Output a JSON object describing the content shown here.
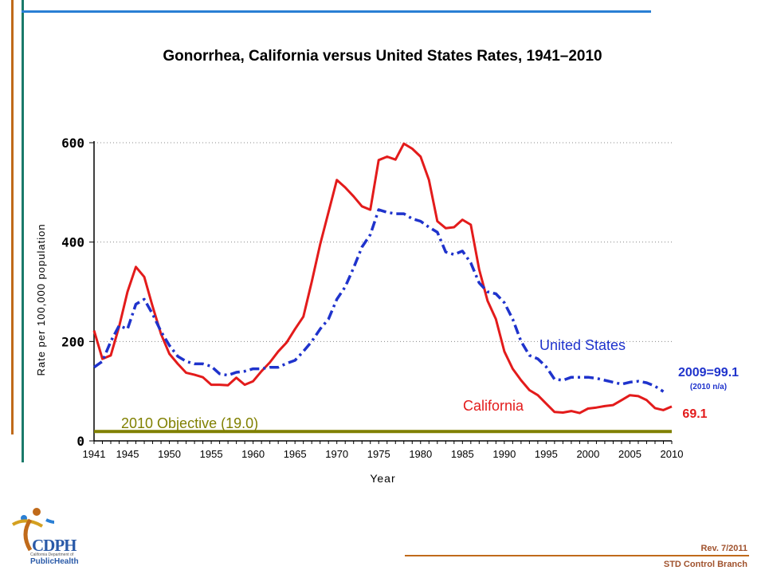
{
  "colors": {
    "california": "#e31b1b",
    "united_states": "#1f33cc",
    "objective": "#808000",
    "frame_brown": "#c06a1a",
    "frame_teal": "#1a7a6a",
    "frame_blue": "#2a7fd4",
    "footer": "#a0522d"
  },
  "footer": {
    "rev": "Rev. 7/2011",
    "branch": "STD Control Branch"
  },
  "logo": {
    "title": "CDPH",
    "sub1": "California Department of",
    "sub2": "PublicHealth"
  },
  "chart_data": {
    "type": "line",
    "title": "Gonorrhea, California versus United States Rates, 1941–2010",
    "xlabel": "Year",
    "ylabel": "Rate per 100,000 population",
    "xlim": [
      1941,
      2010
    ],
    "ylim": [
      0,
      600
    ],
    "yticks": [
      0,
      200,
      400,
      600
    ],
    "ytick_labels": [
      "0",
      "200",
      "400",
      "600"
    ],
    "xticks": [
      1941,
      1945,
      1950,
      1955,
      1960,
      1965,
      1970,
      1975,
      1980,
      1985,
      1990,
      1995,
      2000,
      2005,
      2010
    ],
    "xtick_labels": [
      "1941",
      "1945",
      "1950",
      "1955",
      "1960",
      "1965",
      "1970",
      "1975",
      "1980",
      "1985",
      "1990",
      "1995",
      "2000",
      "2005",
      "2010"
    ],
    "grid": "horizontal dotted",
    "series": [
      {
        "name": "California",
        "label": "California",
        "style": "solid",
        "x": [
          1941,
          1942,
          1943,
          1944,
          1945,
          1946,
          1947,
          1948,
          1949,
          1950,
          1951,
          1952,
          1953,
          1954,
          1955,
          1956,
          1957,
          1958,
          1959,
          1960,
          1961,
          1962,
          1963,
          1964,
          1965,
          1966,
          1967,
          1968,
          1969,
          1970,
          1971,
          1972,
          1973,
          1974,
          1975,
          1976,
          1977,
          1978,
          1979,
          1980,
          1981,
          1982,
          1983,
          1984,
          1985,
          1986,
          1987,
          1988,
          1989,
          1990,
          1991,
          1992,
          1993,
          1994,
          1995,
          1996,
          1997,
          1998,
          1999,
          2000,
          2001,
          2002,
          2003,
          2004,
          2005,
          2006,
          2007,
          2008,
          2009,
          2010
        ],
        "values": [
          222,
          165,
          172,
          230,
          300,
          350,
          330,
          270,
          215,
          175,
          155,
          137,
          133,
          128,
          113,
          113,
          112,
          127,
          113,
          120,
          140,
          158,
          180,
          198,
          225,
          250,
          320,
          395,
          460,
          525,
          510,
          492,
          472,
          465,
          565,
          572,
          566,
          598,
          588,
          572,
          525,
          442,
          428,
          430,
          445,
          435,
          345,
          282,
          245,
          180,
          145,
          122,
          102,
          92,
          75,
          58,
          57,
          60,
          56,
          65,
          67,
          70,
          72,
          82,
          92,
          90,
          82,
          66,
          62,
          69.1
        ]
      },
      {
        "name": "United States",
        "label": "United States",
        "style": "dashdot",
        "x": [
          1941,
          1942,
          1943,
          1944,
          1945,
          1946,
          1947,
          1948,
          1949,
          1950,
          1951,
          1952,
          1953,
          1954,
          1955,
          1956,
          1957,
          1958,
          1959,
          1960,
          1961,
          1962,
          1963,
          1964,
          1965,
          1966,
          1967,
          1968,
          1969,
          1970,
          1971,
          1972,
          1973,
          1974,
          1975,
          1976,
          1977,
          1978,
          1979,
          1980,
          1981,
          1982,
          1983,
          1984,
          1985,
          1986,
          1987,
          1988,
          1989,
          1990,
          1991,
          1992,
          1993,
          1994,
          1995,
          1996,
          1997,
          1998,
          1999,
          2000,
          2001,
          2002,
          2003,
          2004,
          2005,
          2006,
          2007,
          2008,
          2009
        ],
        "values": [
          148,
          160,
          200,
          232,
          225,
          275,
          285,
          255,
          220,
          192,
          170,
          160,
          155,
          155,
          150,
          135,
          132,
          138,
          140,
          145,
          145,
          148,
          148,
          156,
          162,
          180,
          200,
          225,
          245,
          285,
          310,
          348,
          390,
          415,
          465,
          460,
          457,
          457,
          447,
          442,
          430,
          420,
          380,
          375,
          382,
          358,
          318,
          300,
          296,
          278,
          245,
          200,
          172,
          165,
          149,
          124,
          122,
          128,
          128,
          128,
          126,
          122,
          118,
          114,
          118,
          120,
          117,
          110,
          99.1
        ]
      },
      {
        "name": "2010 Objective",
        "label": "2010 Objective (19.0)",
        "style": "solid-thick",
        "x": [
          1941,
          2010
        ],
        "values": [
          19.0,
          19.0
        ]
      }
    ],
    "annotations": {
      "us_2009": "2009=99.1",
      "us_2010": "(2010 n/a)",
      "ca_2010": "69.1"
    }
  }
}
